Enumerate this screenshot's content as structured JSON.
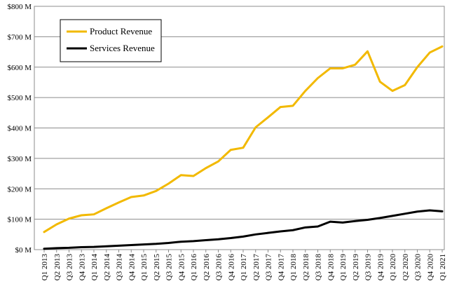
{
  "chart_data": {
    "type": "line",
    "title": "",
    "xlabel": "",
    "ylabel": "",
    "ylim": [
      0,
      800
    ],
    "y_ticks": [
      0,
      100,
      200,
      300,
      400,
      500,
      600,
      700,
      800
    ],
    "y_tick_labels": [
      "$0 M",
      "$100 M",
      "$200 M",
      "$300 M",
      "$400 M",
      "$500 M",
      "$600 M",
      "$700 M",
      "$800 M"
    ],
    "grid": true,
    "legend_position": "top-left",
    "categories": [
      "Q1 2013",
      "Q2 2013",
      "Q3 2013",
      "Q4 2013",
      "Q1 2014",
      "Q2 2014",
      "Q3 2014",
      "Q4 2014",
      "Q1 2015",
      "Q2 2015",
      "Q3 2015",
      "Q4 2015",
      "Q1 2016",
      "Q2 2016",
      "Q3 2016",
      "Q4 2016",
      "Q1 2017",
      "Q2 2017",
      "Q3 2017",
      "Q4 2017",
      "Q1 2018",
      "Q2 2018",
      "Q3 2018",
      "Q4 2018",
      "Q1 2019",
      "Q2 2019",
      "Q3 2019",
      "Q4 2019",
      "Q1 2020",
      "Q2 2020",
      "Q3 2020",
      "Q4 2020",
      "Q1 2021"
    ],
    "series": [
      {
        "name": "Product Revenue",
        "color": "#f2b900",
        "values": [
          58,
          83,
          102,
          113,
          116,
          136,
          155,
          173,
          178,
          193,
          217,
          245,
          242,
          268,
          290,
          328,
          335,
          402,
          435,
          469,
          473,
          522,
          564,
          596,
          596,
          608,
          652,
          552,
          522,
          541,
          600,
          648,
          668
        ]
      },
      {
        "name": "Services Revenue",
        "color": "#000000",
        "values": [
          3,
          5,
          6,
          8,
          9,
          11,
          13,
          15,
          17,
          19,
          22,
          26,
          28,
          31,
          34,
          38,
          43,
          50,
          55,
          60,
          64,
          73,
          76,
          92,
          89,
          94,
          98,
          104,
          111,
          118,
          125,
          129,
          126
        ]
      }
    ]
  }
}
